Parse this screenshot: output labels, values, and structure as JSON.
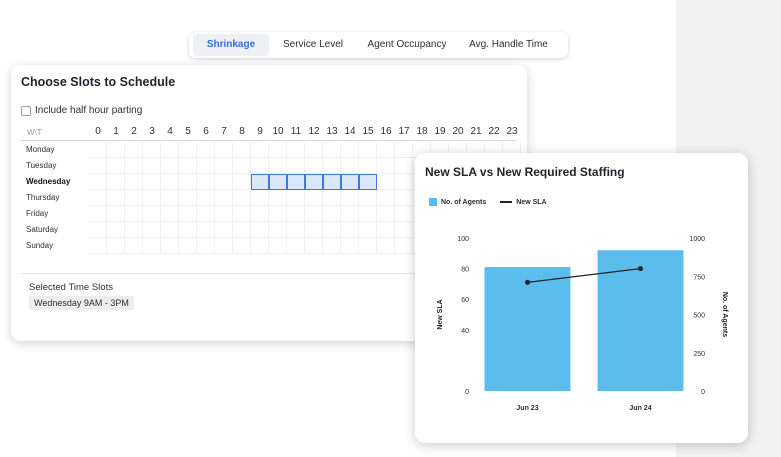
{
  "tabs": [
    {
      "label": "Shrinkage",
      "active": true
    },
    {
      "label": "Service Level",
      "active": false
    },
    {
      "label": "Agent Occupancy",
      "active": false
    },
    {
      "label": "Avg. Handle Time",
      "active": false
    }
  ],
  "scheduler": {
    "title": "Choose Slots to Schedule",
    "half_hour_label": "Include half hour parting",
    "half_hour_checked": false,
    "corner_label": "W\\T",
    "hours": [
      "0",
      "1",
      "2",
      "3",
      "4",
      "5",
      "6",
      "7",
      "8",
      "9",
      "10",
      "11",
      "12",
      "13",
      "14",
      "15",
      "16",
      "17",
      "18",
      "19",
      "20",
      "21",
      "22",
      "23"
    ],
    "days": [
      "Monday",
      "Tuesday",
      "Wednesday",
      "Thursday",
      "Friday",
      "Saturday",
      "Sunday"
    ],
    "selected_day": "Wednesday",
    "selected_hours": [
      9,
      10,
      11,
      12,
      13,
      14,
      15
    ],
    "selected_title": "Selected Time Slots",
    "selected_value": "Wednesday 9AM - 3PM"
  },
  "chart": {
    "title": "New SLA vs New Required Staffing",
    "legend_bar": "No. of Agents",
    "legend_line": "New SLA",
    "left_axis_label": "New SLA",
    "right_axis_label": "No. of Agents",
    "left_ticks": [
      "100",
      "80",
      "60",
      "40",
      "0"
    ],
    "right_ticks": [
      "1000",
      "750",
      "500",
      "250",
      "0"
    ]
  },
  "chart_data": {
    "type": "bar",
    "categories": [
      "Jun 23",
      "Jun 24"
    ],
    "series": [
      {
        "name": "No. of Agents",
        "type": "bar",
        "axis": "right",
        "values": [
          810,
          920
        ]
      },
      {
        "name": "New SLA",
        "type": "line",
        "axis": "left",
        "values": [
          71,
          80
        ]
      }
    ],
    "ylabel": "New SLA",
    "y2label": "No. of Agents",
    "ylim": [
      0,
      100
    ],
    "y2lim": [
      0,
      1000
    ],
    "colors": {
      "bar": "#5bbdec",
      "line": "#1f2328"
    }
  }
}
